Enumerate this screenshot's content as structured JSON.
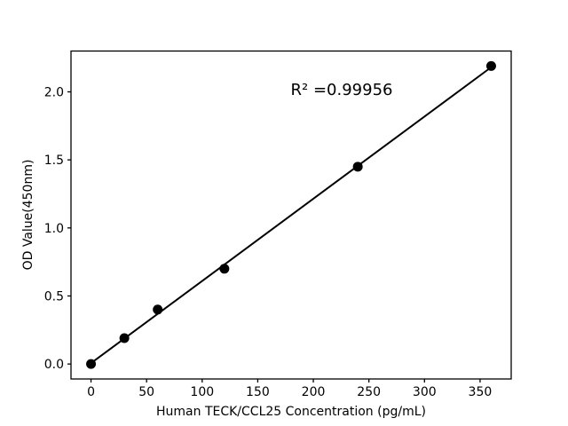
{
  "chart_data": {
    "type": "scatter",
    "title": "",
    "xlabel": "Human TECK/CCL25 Concentration (pg/mL)",
    "ylabel": "OD Value(450nm)",
    "annotation": "R² =0.99956",
    "r_squared": 0.99956,
    "x": [
      0,
      30,
      60,
      120,
      240,
      360
    ],
    "y": [
      0.0,
      0.19,
      0.4,
      0.7,
      1.45,
      2.19
    ],
    "fit_line": {
      "x1": 0,
      "y1": 0.006,
      "x2": 360,
      "y2": 2.181
    },
    "x_ticks": [
      {
        "value": 0,
        "label": "0"
      },
      {
        "value": 50,
        "label": "50"
      },
      {
        "value": 100,
        "label": "100"
      },
      {
        "value": 150,
        "label": "150"
      },
      {
        "value": 200,
        "label": "200"
      },
      {
        "value": 250,
        "label": "250"
      },
      {
        "value": 300,
        "label": "300"
      },
      {
        "value": 350,
        "label": "350"
      }
    ],
    "y_ticks": [
      {
        "value": 0.0,
        "label": "0.0"
      },
      {
        "value": 0.5,
        "label": "0.5"
      },
      {
        "value": 1.0,
        "label": "1.0"
      },
      {
        "value": 1.5,
        "label": "1.5"
      },
      {
        "value": 2.0,
        "label": "2.0"
      }
    ],
    "xlim": [
      -18,
      378
    ],
    "ylim": [
      -0.11,
      2.3
    ],
    "grid": false,
    "legend": null,
    "colors": {
      "marker": "#000000",
      "line": "#000000",
      "axis": "#000000",
      "background": "#ffffff"
    }
  }
}
